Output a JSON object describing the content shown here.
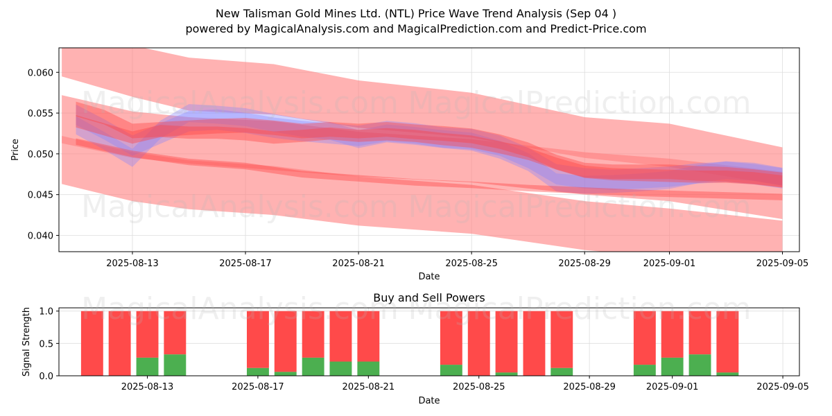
{
  "header": {
    "title": "New Talisman Gold Mines Ltd. (NTL) Price Wave Trend Analysis (Sep 04 )",
    "subtitle": "powered by MagicalAnalysis.com and MagicalPrediction.com and Predict-Price.com"
  },
  "watermarks": [
    "MagicalAnalysis.com",
    "MagicalPrediction.com"
  ],
  "colors": {
    "band": "#ff7f7f",
    "blue": "#8080ff",
    "buy": "#4caf50",
    "sell": "#ff4a4a",
    "grid": "#dddddd"
  },
  "chart_data": [
    {
      "type": "area",
      "title": "",
      "xlabel": "Date",
      "ylabel": "Price",
      "xlim": [
        -1.6,
        24.6
      ],
      "ylim": [
        0.038,
        0.063
      ],
      "grid": true,
      "x_ticks": [
        {
          "t": 1,
          "label": "2025-08-13"
        },
        {
          "t": 5,
          "label": "2025-08-17"
        },
        {
          "t": 9,
          "label": "2025-08-21"
        },
        {
          "t": 13,
          "label": "2025-08-25"
        },
        {
          "t": 17,
          "label": "2025-08-29"
        },
        {
          "t": 20,
          "label": "2025-09-01"
        },
        {
          "t": 24,
          "label": "2025-09-05"
        }
      ],
      "y_ticks": [
        {
          "v": 0.04,
          "label": "0.040"
        },
        {
          "v": 0.045,
          "label": "0.045"
        },
        {
          "v": 0.05,
          "label": "0.050"
        },
        {
          "v": 0.055,
          "label": "0.055"
        },
        {
          "v": 0.06,
          "label": "0.060"
        }
      ],
      "trend_bands": [
        {
          "x": [
            -1.5,
            1,
            3,
            6,
            9,
            13,
            17,
            20,
            24
          ],
          "lower": [
            0.0595,
            0.057,
            0.0553,
            0.0548,
            0.0532,
            0.052,
            0.0495,
            0.0484,
            0.0461
          ],
          "upper": [
            0.0638,
            0.0633,
            0.0618,
            0.061,
            0.059,
            0.0575,
            0.0545,
            0.0537,
            0.0508
          ]
        },
        {
          "x": [
            -1.5,
            1,
            3,
            6,
            9,
            13,
            17,
            20,
            24
          ],
          "lower": [
            0.0513,
            0.0495,
            0.0488,
            0.048,
            0.0472,
            0.0465,
            0.045,
            0.0442,
            0.042
          ],
          "upper": [
            0.0572,
            0.0552,
            0.0545,
            0.054,
            0.0527,
            0.0518,
            0.0502,
            0.0494,
            0.0478
          ]
        },
        {
          "x": [
            -1.5,
            1,
            3,
            6,
            9,
            13,
            17,
            20,
            24
          ],
          "lower": [
            0.0463,
            0.0442,
            0.0432,
            0.0425,
            0.0412,
            0.0402,
            0.0382,
            0.0373,
            0.035
          ],
          "upper": [
            0.0522,
            0.0502,
            0.0492,
            0.0485,
            0.0472,
            0.0462,
            0.0442,
            0.0433,
            0.0418
          ]
        }
      ],
      "waves": [
        {
          "color": "blue",
          "x": [
            -1,
            0,
            1,
            2,
            3,
            4,
            5,
            6,
            7,
            8,
            9,
            10,
            11,
            12,
            13,
            14,
            15,
            16,
            17,
            18,
            19,
            20,
            21,
            22,
            23,
            24
          ],
          "y": [
            0.0535,
            0.0516,
            0.0495,
            0.053,
            0.055,
            0.0548,
            0.0545,
            0.0538,
            0.0532,
            0.0528,
            0.0518,
            0.0525,
            0.0522,
            0.0518,
            0.0515,
            0.0505,
            0.049,
            0.0465,
            0.0462,
            0.0463,
            0.0465,
            0.0468,
            0.0475,
            0.048,
            0.0478,
            0.0472
          ],
          "width": 0.0022
        },
        {
          "color": "blue",
          "x": [
            -1,
            0,
            1,
            2,
            3,
            4,
            5,
            6,
            7,
            8,
            9,
            10,
            11,
            12,
            13,
            14,
            15,
            16,
            17,
            18,
            19,
            20,
            21,
            22,
            23,
            24
          ],
          "y": [
            0.0548,
            0.053,
            0.051,
            0.0525,
            0.054,
            0.0542,
            0.0538,
            0.0532,
            0.0528,
            0.0525,
            0.0522,
            0.0528,
            0.0525,
            0.052,
            0.0518,
            0.051,
            0.0495,
            0.0475,
            0.047,
            0.0468,
            0.047,
            0.0472,
            0.0476,
            0.0478,
            0.0475,
            0.047
          ],
          "width": 0.0025
        },
        {
          "color": "red",
          "x": [
            -1,
            0,
            1,
            2,
            3,
            4,
            5,
            6,
            7,
            8,
            9,
            10,
            11,
            12,
            13,
            14,
            15,
            16,
            17,
            18,
            19,
            20,
            21,
            22,
            23,
            24
          ],
          "y": [
            0.0555,
            0.0545,
            0.0528,
            0.053,
            0.0532,
            0.0534,
            0.0535,
            0.0532,
            0.0528,
            0.053,
            0.0528,
            0.053,
            0.0527,
            0.0525,
            0.0522,
            0.0515,
            0.0505,
            0.049,
            0.048,
            0.0478,
            0.0478,
            0.0478,
            0.0476,
            0.0475,
            0.0472,
            0.0468
          ],
          "width": 0.0018
        },
        {
          "color": "red",
          "x": [
            -1,
            0,
            1,
            2,
            3,
            4,
            5,
            6,
            7,
            8,
            9,
            10,
            11,
            12,
            13,
            14,
            15,
            16,
            17,
            18,
            19,
            20,
            21,
            22,
            23,
            24
          ],
          "y": [
            0.054,
            0.053,
            0.052,
            0.0528,
            0.0526,
            0.0526,
            0.0524,
            0.052,
            0.0522,
            0.0525,
            0.0522,
            0.0524,
            0.0522,
            0.0518,
            0.0515,
            0.0508,
            0.05,
            0.0488,
            0.0478,
            0.0475,
            0.0474,
            0.0473,
            0.0472,
            0.0472,
            0.047,
            0.0466
          ],
          "width": 0.0015
        },
        {
          "color": "red",
          "x": [
            -1,
            1,
            3,
            5,
            7,
            9,
            11,
            13,
            15,
            17,
            19,
            21,
            23,
            24
          ],
          "y": [
            0.0515,
            0.05,
            0.049,
            0.0485,
            0.0475,
            0.047,
            0.0465,
            0.0462,
            0.0458,
            0.0455,
            0.0452,
            0.045,
            0.0448,
            0.0447
          ],
          "width": 0.0008
        }
      ]
    },
    {
      "type": "bar",
      "title": "Buy and Sell Powers",
      "xlabel": "Date",
      "ylabel": "Signal Strength",
      "xlim": [
        -2.2,
        24.6
      ],
      "ylim": [
        0,
        1.05
      ],
      "grid": true,
      "x_ticks": [
        {
          "t": 1,
          "label": "2025-08-13"
        },
        {
          "t": 5,
          "label": "2025-08-17"
        },
        {
          "t": 9,
          "label": "2025-08-21"
        },
        {
          "t": 13,
          "label": "2025-08-25"
        },
        {
          "t": 17,
          "label": "2025-08-29"
        },
        {
          "t": 20,
          "label": "2025-09-01"
        },
        {
          "t": 24,
          "label": "2025-09-05"
        }
      ],
      "y_ticks": [
        {
          "v": 0.0,
          "label": "0.0"
        },
        {
          "v": 0.5,
          "label": "0.5"
        },
        {
          "v": 1.0,
          "label": "1.0"
        }
      ],
      "series": [
        {
          "name": "Buy",
          "color": "buy"
        },
        {
          "name": "Sell",
          "color": "sell"
        }
      ],
      "bars": [
        {
          "t": -1,
          "buy": 0.0
        },
        {
          "t": 0,
          "buy": 0.0
        },
        {
          "t": 1,
          "buy": 0.28
        },
        {
          "t": 2,
          "buy": 0.33
        },
        {
          "t": 5,
          "buy": 0.12
        },
        {
          "t": 6,
          "buy": 0.06
        },
        {
          "t": 7,
          "buy": 0.28
        },
        {
          "t": 8,
          "buy": 0.22
        },
        {
          "t": 9,
          "buy": 0.22
        },
        {
          "t": 12,
          "buy": 0.17
        },
        {
          "t": 13,
          "buy": 0.0
        },
        {
          "t": 14,
          "buy": 0.05
        },
        {
          "t": 15,
          "buy": 0.0
        },
        {
          "t": 16,
          "buy": 0.12
        },
        {
          "t": 19,
          "buy": 0.17
        },
        {
          "t": 20,
          "buy": 0.28
        },
        {
          "t": 21,
          "buy": 0.33
        },
        {
          "t": 22,
          "buy": 0.05
        }
      ]
    }
  ]
}
